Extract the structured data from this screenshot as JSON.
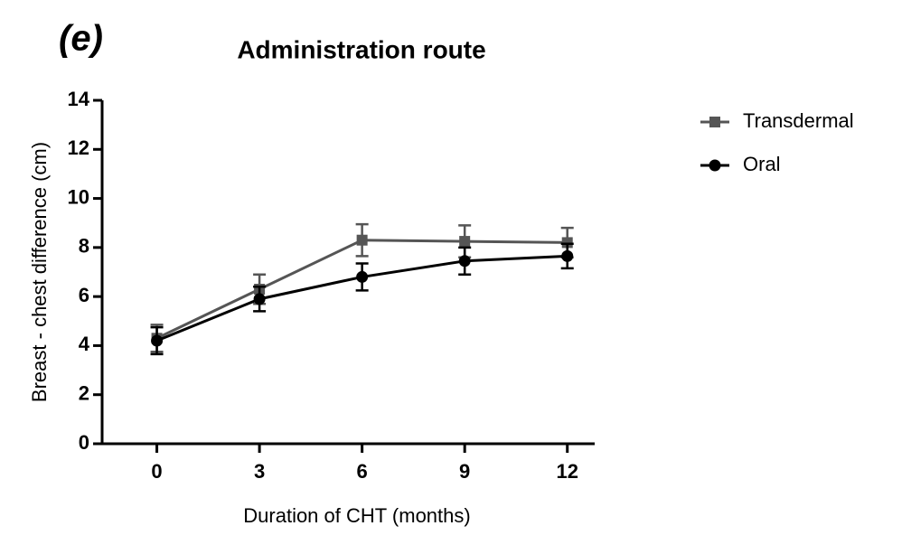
{
  "chart_data": {
    "type": "line",
    "panel_label": "(e)",
    "title": "Administration route",
    "x_label": "Duration of CHT (months)",
    "y_label": "Breast - chest difference (cm)",
    "x": [
      0,
      3,
      6,
      9,
      12
    ],
    "series": [
      {
        "name": "Transdermal",
        "color": "#555555",
        "marker": "square",
        "values": [
          4.3,
          6.3,
          8.3,
          8.25,
          8.2
        ],
        "errors": [
          0.55,
          0.6,
          0.65,
          0.65,
          0.6
        ]
      },
      {
        "name": "Oral",
        "color": "#000000",
        "marker": "circle",
        "values": [
          4.2,
          5.9,
          6.8,
          7.45,
          7.65
        ],
        "errors": [
          0.55,
          0.5,
          0.55,
          0.55,
          0.5
        ]
      }
    ],
    "xlim": [
      -1.6,
      12.8
    ],
    "xticks": [
      0,
      3,
      6,
      9,
      12
    ],
    "ylim": [
      0,
      14
    ],
    "yticks": [
      0,
      2,
      4,
      6,
      8,
      10,
      12,
      14
    ],
    "grid": false,
    "legend": "upper right"
  }
}
